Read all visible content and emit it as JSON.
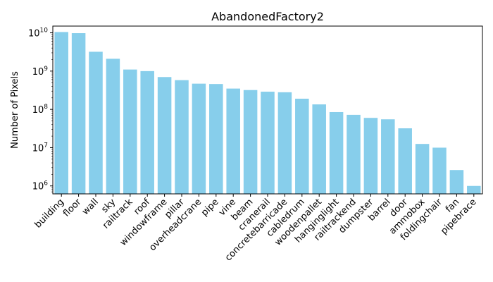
{
  "chart_data": {
    "type": "bar",
    "title": "AbandonedFactory2",
    "xlabel": "",
    "ylabel": "Number of Pixels",
    "yscale": "log",
    "ylim": [
      620000,
      15000000000
    ],
    "grid": false,
    "bar_color": "#87ceeb",
    "categories": [
      "building",
      "floor",
      "wall",
      "sky",
      "railtrack",
      "roof",
      "windowframe",
      "pillar",
      "overheadcrane",
      "pipe",
      "vine",
      "beam",
      "cranerail",
      "concretebarricade",
      "cabledrum",
      "woodenpallet",
      "hanginglight",
      "railtrackend",
      "dumpster",
      "barrel",
      "door",
      "ammobox",
      "foldingchair",
      "fan",
      "pipebrace"
    ],
    "values": [
      10500000000,
      9800000000,
      3200000000,
      2100000000,
      1100000000,
      1000000000,
      700000000,
      580000000,
      470000000,
      460000000,
      350000000,
      320000000,
      290000000,
      280000000,
      190000000,
      135000000,
      85000000,
      72000000,
      60000000,
      55000000,
      32000000,
      12500000,
      10000000,
      2600000,
      1000000
    ],
    "yticks": [
      {
        "base": "10",
        "exp": "6",
        "value": 1000000
      },
      {
        "base": "10",
        "exp": "7",
        "value": 10000000
      },
      {
        "base": "10",
        "exp": "8",
        "value": 100000000
      },
      {
        "base": "10",
        "exp": "9",
        "value": 1000000000
      },
      {
        "base": "10",
        "exp": "10",
        "value": 10000000000
      }
    ]
  }
}
